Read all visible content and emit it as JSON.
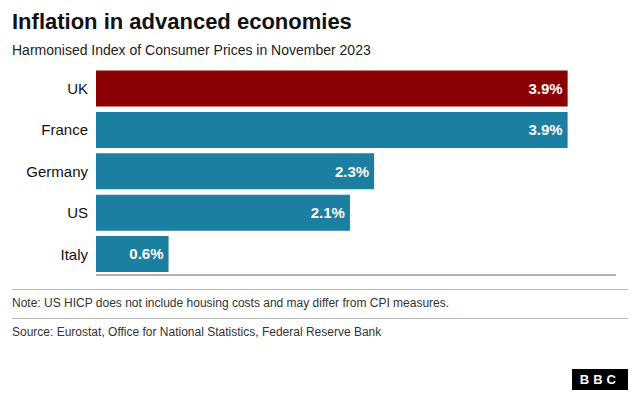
{
  "chart_data": {
    "type": "bar",
    "orientation": "horizontal",
    "title": "Inflation in advanced economies",
    "subtitle": "Harmonised Index of Consumer Prices in November 2023",
    "categories": [
      "Italy",
      "US",
      "Germany",
      "France",
      "UK"
    ],
    "values": [
      0.6,
      2.1,
      2.3,
      3.9,
      3.9
    ],
    "value_labels": [
      "0.6%",
      "2.1%",
      "2.3%",
      "3.9%",
      "3.9%"
    ],
    "data_labels": true,
    "colors": [
      "#1a7fa0",
      "#1a7fa0",
      "#1a7fa0",
      "#1a7fa0",
      "#8b0000"
    ],
    "xlim": [
      0,
      4.3
    ],
    "tick_labels": "y",
    "grid": false,
    "annotations": [
      "Note: US HICP does not include housing costs and may differ from CPI measures.",
      "Source: Eurostat, Office for National Statistics, Federal Reserve Bank",
      "BBC"
    ]
  }
}
